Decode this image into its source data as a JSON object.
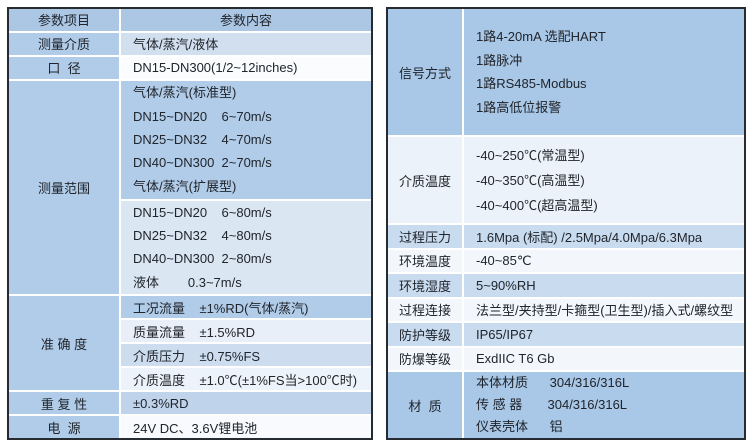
{
  "left": {
    "header": {
      "col1": "参数项目",
      "col2": "参数内容"
    },
    "labels": {
      "medium": "测量介质",
      "diameter": "口  径",
      "range": "测量范围",
      "accuracy": "准 确 度",
      "repeatability": "重 复 性",
      "power": "电  源"
    },
    "medium": "气体/蒸汽/液体",
    "diameter": "DN15-DN300(1/2~12inches)",
    "range_std": [
      "气体/蒸汽(标准型)",
      "DN15~DN20    6~70m/s",
      "DN25~DN32    4~70m/s",
      "DN40~DN300  2~70m/s",
      "气体/蒸汽(扩展型)"
    ],
    "range_ext": [
      "DN15~DN20    6~80m/s",
      "DN25~DN32    4~80m/s",
      "DN40~DN300  2~80m/s",
      "液体        0.3~7m/s"
    ],
    "accuracy": [
      "工况流量    ±1%RD(气体/蒸汽)",
      "质量流量    ±1.5%RD",
      "介质压力    ±0.75%FS",
      "介质温度    ±1.0℃(±1%FS当>100℃时)"
    ],
    "repeatability": "±0.3%RD",
    "power": "24V DC、3.6V锂电池"
  },
  "right": {
    "labels": {
      "signal": "信号方式",
      "medium_temp": "介质温度",
      "process_pressure": "过程压力",
      "ambient_temp": "环境温度",
      "ambient_humidity": "环境湿度",
      "process_connection": "过程连接",
      "protection": "防护等级",
      "explosion": "防爆等级",
      "material": "材  质"
    },
    "signal": [
      "1路4-20mA 选配HART",
      "1路脉冲",
      "1路RS485-Modbus",
      "1路高低位报警"
    ],
    "medium_temp": [
      "-40~250℃(常温型)",
      "-40~350℃(高温型)",
      "-40~400℃(超高温型)"
    ],
    "process_pressure": "1.6Mpa (标配) /2.5Mpa/4.0Mpa/6.3Mpa",
    "ambient_temp": "-40~85℃",
    "ambient_humidity": "5~90%RH",
    "process_connection": "法兰型/夹持型/卡箍型(卫生型)/插入式/螺纹型",
    "protection": "IP65/IP67",
    "explosion": "ExdIIC T6 Gb",
    "material": [
      "本体材质      304/316/316L",
      "传 感 器       304/316/316L",
      "仪表壳体      铝"
    ]
  },
  "colors": {
    "border": "#262b31",
    "header_blue": "#abc7e4",
    "band_blue": "#b1cce8",
    "band_pale": "#dbe6f3",
    "separator": "#ffffff",
    "text": "#20252c"
  }
}
